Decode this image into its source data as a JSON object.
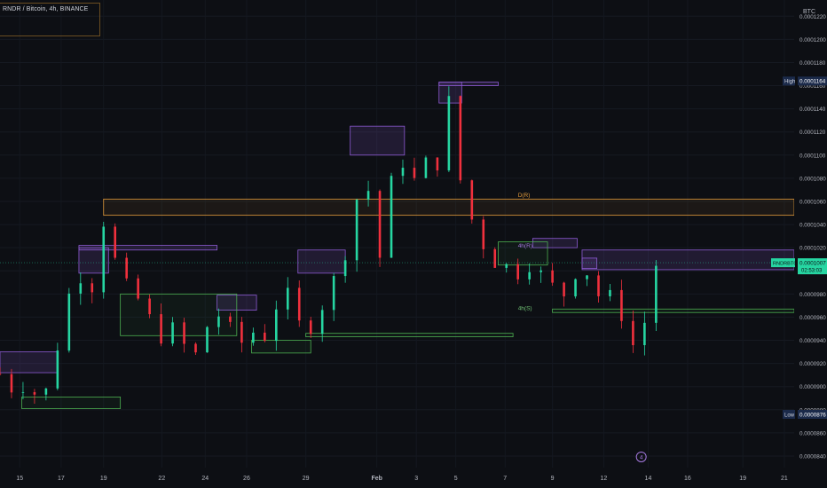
{
  "header": {
    "symbol_line": "RNDR / Bitcoin, 4h, BINANCE",
    "currency": "BTC"
  },
  "colors": {
    "background": "#0d0f14",
    "bull": "#26d6a2",
    "bear": "#f0303d",
    "purple_zone": "#8e5bd4",
    "orange_zone": "#e29a3a",
    "green_zone": "#4caf50",
    "current_price_bg": "#26d6a2",
    "high_low_bg": "#1b2a4a"
  },
  "chart_data": {
    "type": "candlestick",
    "timeframe": "4h",
    "y_range": [
      8.3e-05,
      0.0001234
    ],
    "y_ticks": [
      "0.0001220",
      "0.0001200",
      "0.0001180",
      "0.0001160",
      "0.0001140",
      "0.0001120",
      "0.0001100",
      "0.0001080",
      "0.0001060",
      "0.0001040",
      "0.0001020",
      "0.0001000",
      "0.0000980",
      "0.0000960",
      "0.0000940",
      "0.0000920",
      "0.0000900",
      "0.0000880",
      "0.0000860",
      "0.0000840"
    ],
    "y_tick_values": [
      0.000122,
      0.00012,
      0.000118,
      0.000116,
      0.000114,
      0.000112,
      0.00011,
      0.000108,
      0.000106,
      0.000104,
      0.000102,
      0.0001,
      9.8e-05,
      9.6e-05,
      9.4e-05,
      9.2e-05,
      9e-05,
      8.8e-05,
      8.6e-05,
      8.4e-05
    ],
    "x_range": [
      14.5,
      22.55
    ],
    "x_ticks": [
      {
        "label": "15",
        "pos": 14.7
      },
      {
        "label": "17",
        "pos": 15.12
      },
      {
        "label": "19",
        "pos": 15.55
      },
      {
        "label": "22",
        "pos": 16.14
      },
      {
        "label": "24",
        "pos": 16.58
      },
      {
        "label": "26",
        "pos": 17.0
      },
      {
        "label": "29",
        "pos": 17.6
      },
      {
        "label": "Feb",
        "pos": 18.32
      },
      {
        "label": "3",
        "pos": 18.72
      },
      {
        "label": "5",
        "pos": 19.12
      },
      {
        "label": "7",
        "pos": 19.62
      },
      {
        "label": "9",
        "pos": 20.1
      },
      {
        "label": "12",
        "pos": 20.62
      },
      {
        "label": "14",
        "pos": 21.07
      },
      {
        "label": "16",
        "pos": 21.47
      },
      {
        "label": "19",
        "pos": 22.03
      },
      {
        "label": "21",
        "pos": 22.45
      }
    ],
    "ohlc_waypoints": [
      [
        14.5,
        9.11e-05
      ],
      [
        14.6,
        9e-05
      ],
      [
        14.75,
        9.05e-05
      ],
      [
        14.88,
        8.92e-05
      ],
      [
        15.0,
        8.96e-05
      ],
      [
        15.12,
        9.55e-05
      ],
      [
        15.22,
        9.85e-05
      ],
      [
        15.35,
        0.0001004
      ],
      [
        15.45,
        9.87e-05
      ],
      [
        15.55,
        0.0001045
      ],
      [
        15.65,
        0.0001012
      ],
      [
        15.75,
        9.85e-05
      ],
      [
        15.9,
        9.75e-05
      ],
      [
        16.0,
        9.58e-05
      ],
      [
        16.15,
        9.45e-05
      ],
      [
        16.3,
        9.48e-05
      ],
      [
        16.45,
        9.18e-05
      ],
      [
        16.58,
        9.5e-05
      ],
      [
        16.7,
        9.65e-05
      ],
      [
        16.8,
        9.5e-05
      ],
      [
        16.92,
        9.35e-05
      ],
      [
        17.05,
        9.48e-05
      ],
      [
        17.2,
        9.45e-05
      ],
      [
        17.35,
        9.85e-05
      ],
      [
        17.45,
        9.7e-05
      ],
      [
        17.55,
        9.48e-05
      ],
      [
        17.7,
        9.6e-05
      ],
      [
        17.85,
        9.88e-05
      ],
      [
        17.95,
        9.95e-05
      ],
      [
        18.05,
        0.0001045
      ],
      [
        18.2,
        0.0001085
      ],
      [
        18.3,
        0.000104
      ],
      [
        18.35,
        0.0001012
      ],
      [
        18.45,
        0.000107
      ],
      [
        18.6,
        0.00011
      ],
      [
        18.75,
        0.0001065
      ],
      [
        18.88,
        0.0001115
      ],
      [
        18.95,
        0.000109
      ],
      [
        19.02,
        0.0001155
      ],
      [
        19.1,
        0.0001125
      ],
      [
        19.2,
        0.0001055
      ],
      [
        19.32,
        0.000104
      ],
      [
        19.45,
        0.0001015
      ],
      [
        19.6,
        0.0001005
      ],
      [
        19.72,
        9.98e-05
      ],
      [
        19.85,
        0.0001012
      ],
      [
        19.95,
        9.98e-05
      ],
      [
        20.1,
        9.85e-05
      ],
      [
        20.2,
        9.78e-05
      ],
      [
        20.35,
        0.0001005
      ],
      [
        20.5,
        9.98e-05
      ],
      [
        20.6,
        9.7e-05
      ],
      [
        20.75,
        9.78e-05
      ],
      [
        20.85,
        9.52e-05
      ],
      [
        20.92,
        9.35e-05
      ],
      [
        21.0,
        9.52e-05
      ],
      [
        21.05,
        9.58e-05
      ],
      [
        21.12,
        0.0001005
      ],
      [
        21.17,
        0.0001007
      ]
    ],
    "boxes": [
      {
        "kind": "purple",
        "x0": 14.5,
        "x1": 15.08,
        "y0": 9.3e-05,
        "y1": 9.12e-05
      },
      {
        "kind": "purple",
        "x0": 15.3,
        "x1": 16.7,
        "y0": 0.0001022,
        "y1": 0.0001018
      },
      {
        "kind": "purple",
        "x0": 15.3,
        "x1": 15.6,
        "y0": 0.000102,
        "y1": 9.98e-05
      },
      {
        "kind": "purple",
        "x0": 16.7,
        "x1": 17.1,
        "y0": 9.79e-05,
        "y1": 9.66e-05
      },
      {
        "kind": "purple",
        "x0": 17.52,
        "x1": 18.0,
        "y0": 0.0001018,
        "y1": 9.98e-05
      },
      {
        "kind": "purple",
        "x0": 18.05,
        "x1": 18.6,
        "y0": 0.0001125,
        "y1": 0.00011
      },
      {
        "kind": "purple",
        "x0": 18.95,
        "x1": 19.55,
        "y0": 0.0001163,
        "y1": 0.000116
      },
      {
        "kind": "purple",
        "x0": 18.95,
        "x1": 19.18,
        "y0": 0.0001163,
        "y1": 0.0001145
      },
      {
        "kind": "purple",
        "x0": 19.9,
        "x1": 20.35,
        "y0": 0.0001028,
        "y1": 0.000102
      },
      {
        "kind": "purple",
        "x0": 20.4,
        "x1": 22.55,
        "y0": 0.0001018,
        "y1": 0.0001001
      },
      {
        "kind": "purple",
        "x0": 20.4,
        "x1": 20.55,
        "y0": 0.0001011,
        "y1": 0.0001002
      },
      {
        "kind": "orange",
        "x0": 15.55,
        "x1": 22.55,
        "y0": 0.0001062,
        "y1": 0.0001048
      },
      {
        "kind": "green",
        "x0": 14.72,
        "x1": 15.72,
        "y0": 8.91e-05,
        "y1": 8.81e-05
      },
      {
        "kind": "green",
        "x0": 15.72,
        "x1": 16.9,
        "y0": 9.8e-05,
        "y1": 9.44e-05
      },
      {
        "kind": "green",
        "x0": 17.05,
        "x1": 17.65,
        "y0": 9.4e-05,
        "y1": 9.29e-05
      },
      {
        "kind": "green",
        "x0": 17.6,
        "x1": 19.7,
        "y0": 9.46e-05,
        "y1": 9.43e-05
      },
      {
        "kind": "green",
        "x0": 19.55,
        "x1": 20.05,
        "y0": 0.0001025,
        "y1": 0.0001005
      },
      {
        "kind": "green",
        "x0": 20.1,
        "x1": 22.55,
        "y0": 9.67e-05,
        "y1": 9.64e-05
      }
    ],
    "zone_labels": [
      {
        "text": "D(R)",
        "x": 19.75,
        "y": 0.0001064,
        "kind": "orange"
      },
      {
        "text": "4h(R)",
        "x": 19.75,
        "y": 0.000102,
        "kind": "purple"
      },
      {
        "text": "4h(S)",
        "x": 19.75,
        "y": 9.66e-05,
        "kind": "green"
      }
    ],
    "price_labels": {
      "high": {
        "tag": "High",
        "value": "0.0001164",
        "y": 0.0001164
      },
      "current": {
        "tag": "RNDRBTC",
        "value": "0.0001007",
        "timer": "02:53:03",
        "y": 0.0001007
      },
      "low": {
        "tag": "Low",
        "value": "0.0000876",
        "y": 8.76e-05
      }
    },
    "marker": {
      "text": "4",
      "x": 21.0,
      "y": 8.4e-05
    }
  }
}
